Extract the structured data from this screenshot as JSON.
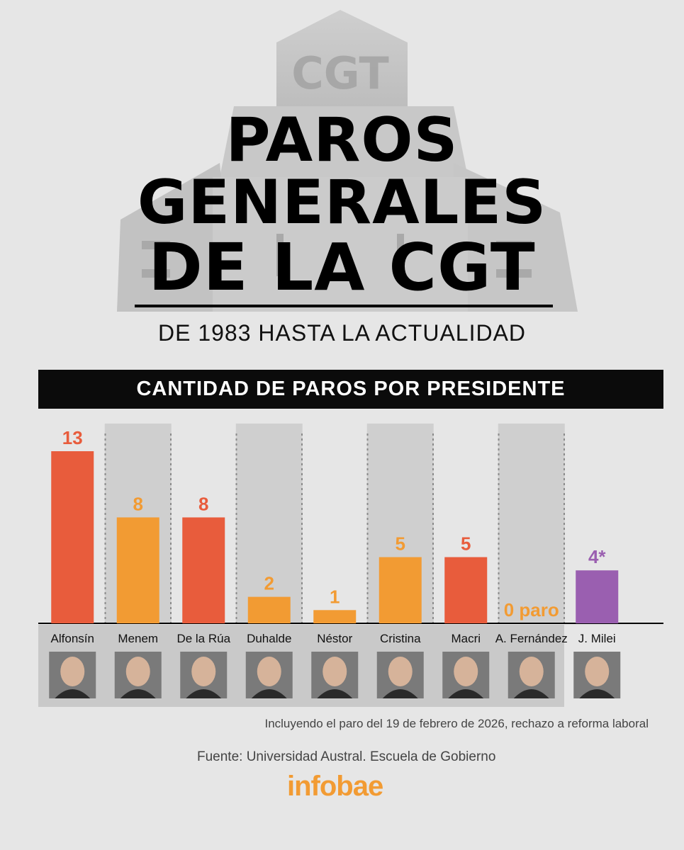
{
  "header": {
    "title_lines": [
      "PAROS",
      "GENERALES",
      "DE LA CGT"
    ],
    "subtitle": "DE 1983 HASTA LA ACTUALIDAD",
    "building_sign": "CGT"
  },
  "banner": {
    "label": "CANTIDAD DE PAROS POR PRESIDENTE"
  },
  "chart_data": {
    "type": "bar",
    "title": "CANTIDAD DE PAROS POR PRESIDENTE",
    "categories": [
      "Alfonsín",
      "Menem",
      "De la Rúa",
      "Duhalde",
      "Néstor",
      "Cristina",
      "Macri",
      "A. Fernández",
      "J. Milei"
    ],
    "values": [
      13,
      8,
      8,
      2,
      1,
      5,
      5,
      0,
      4
    ],
    "data_labels": [
      "13",
      "8",
      "8",
      "2",
      "1",
      "5",
      "5",
      "0 paro",
      "4*"
    ],
    "colors": [
      "#e85c3c",
      "#f29b33",
      "#e85c3c",
      "#f29b33",
      "#f29b33",
      "#f29b33",
      "#e85c3c",
      "#f29b33",
      "#9a5fb0"
    ],
    "shaded_columns": [
      "Menem",
      "Duhalde",
      "Cristina",
      "A. Fernández"
    ],
    "ylim": [
      0,
      13
    ],
    "grid": false,
    "photos": "portrait-photo per category"
  },
  "notes": {
    "footnote": "Incluyendo el paro del 19 de febrero de 2026, rechazo a reforma laboral",
    "source": "Fuente: Universidad Austral. Escuela de Gobierno"
  },
  "brand": {
    "name": "infobae",
    "color": "#f29b33"
  }
}
